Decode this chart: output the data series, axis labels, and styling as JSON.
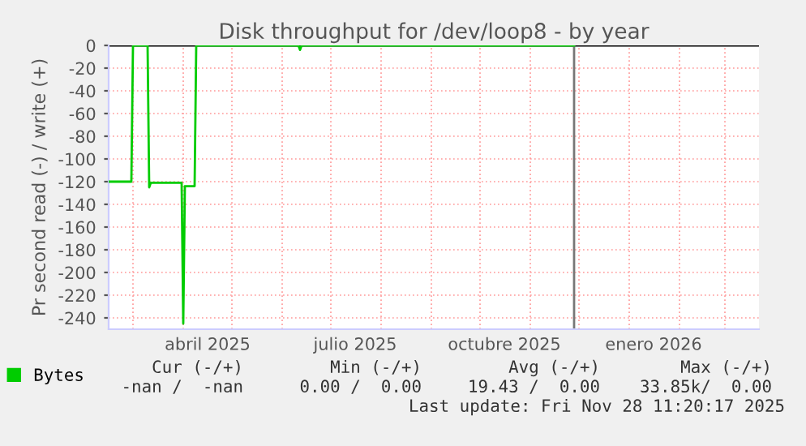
{
  "chart_data": {
    "type": "line",
    "title": "Disk throughput for /dev/loop8 - by year",
    "ylabel": "Pr second read (-) / write (+)",
    "x": [
      "2025-02-14",
      "2025-02-28",
      "2025-03-01",
      "2025-03-10",
      "2025-03-11",
      "2025-03-12",
      "2025-03-31",
      "2025-04-01",
      "2025-04-02",
      "2025-04-08",
      "2025-04-09",
      "2025-06-11",
      "2025-06-12",
      "2025-06-13",
      "2025-11-28"
    ],
    "series": [
      {
        "name": "Bytes",
        "color": "#00cc00",
        "values": [
          -120,
          -120,
          0,
          0,
          -125,
          -121,
          -121,
          -245,
          -124,
          -124,
          0,
          0,
          -4,
          0,
          0
        ]
      }
    ],
    "xlim": [
      "2025-02-14",
      "2026-03-22"
    ],
    "xticks": [
      {
        "value": "2025-03-01",
        "label": null
      },
      {
        "value": "2025-04-01",
        "label": null
      },
      {
        "value": "2025-04-16",
        "label": "abril 2025"
      },
      {
        "value": "2025-05-01",
        "label": null
      },
      {
        "value": "2025-06-01",
        "label": null
      },
      {
        "value": "2025-07-01",
        "label": null
      },
      {
        "value": "2025-07-16",
        "label": "julio 2025"
      },
      {
        "value": "2025-08-01",
        "label": null
      },
      {
        "value": "2025-09-01",
        "label": null
      },
      {
        "value": "2025-10-01",
        "label": null
      },
      {
        "value": "2025-10-16",
        "label": "octubre 2025"
      },
      {
        "value": "2025-11-01",
        "label": null
      },
      {
        "value": "2025-12-01",
        "label": null
      },
      {
        "value": "2026-01-01",
        "label": null
      },
      {
        "value": "2026-01-16",
        "label": "enero 2026"
      },
      {
        "value": "2026-02-01",
        "label": null
      },
      {
        "value": "2026-03-01",
        "label": null
      }
    ],
    "ylim": [
      -250,
      0
    ],
    "yticks": [
      0,
      -20,
      -40,
      -60,
      -80,
      -100,
      -120,
      -140,
      -160,
      -180,
      -200,
      -220,
      -240
    ],
    "ref_lines": [
      {
        "axis": "x",
        "value": "2025-11-28",
        "color": "#777777"
      }
    ],
    "grid": true,
    "legend": "bottom left",
    "marker": "none",
    "line_style": "solid",
    "annotations": [
      "Cur (-/+)",
      "Min (-/+)",
      "Avg (-/+)",
      "Max (-/+)",
      "-nan /  -nan",
      "0.00 /  0.00",
      "19.43 /  0.00",
      "33.85k/  0.00",
      "Last update: Fri Nov 28 11:20:17 2025"
    ]
  }
}
